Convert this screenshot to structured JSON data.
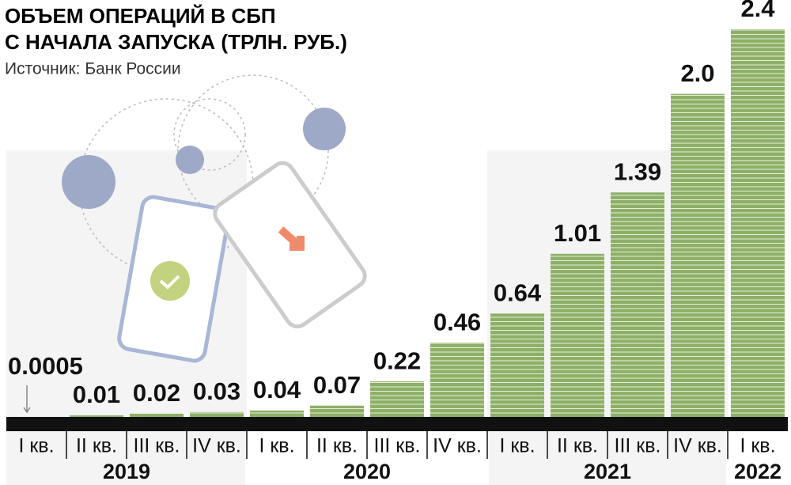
{
  "chart_data": {
    "type": "bar",
    "title": [
      "ОБЪЕМ ОПЕРАЦИЙ В СБП",
      "С НАЧАЛА ЗАПУСКА (ТРЛН. РУБ.)"
    ],
    "subtitle": "Источник: Банк России",
    "color": "#8db067",
    "groups": [
      {
        "name": "2019",
        "categories": [
          "I кв.",
          "II кв.",
          "III кв.",
          "IV кв."
        ],
        "values": [
          0.0005,
          0.01,
          0.02,
          0.03
        ],
        "value_labels": [
          "0.0005",
          "0.01",
          "0.02",
          "0.03"
        ]
      },
      {
        "name": "2020",
        "categories": [
          "I кв.",
          "II кв.",
          "III кв.",
          "IV кв."
        ],
        "values": [
          0.04,
          0.07,
          0.22,
          0.46
        ],
        "value_labels": [
          "0.04",
          "0.07",
          "0.22",
          "0.46"
        ]
      },
      {
        "name": "2021",
        "categories": [
          "I кв.",
          "II кв.",
          "III кв.",
          "IV кв."
        ],
        "values": [
          0.64,
          1.01,
          1.39,
          2.0
        ],
        "value_labels": [
          "0.64",
          "1.01",
          "1.39",
          "2.0"
        ]
      },
      {
        "name": "2022",
        "categories": [
          "I кв."
        ],
        "values": [
          2.4
        ],
        "value_labels": [
          "2.4"
        ]
      }
    ]
  }
}
